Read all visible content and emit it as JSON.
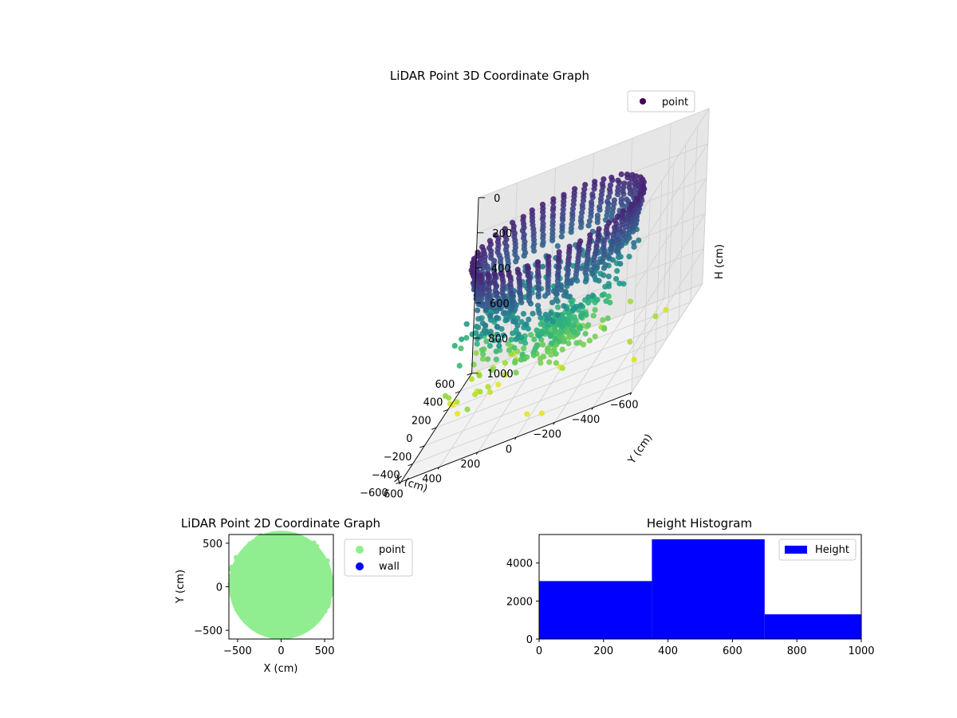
{
  "chart_data": [
    {
      "type": "scatter3d",
      "title": "LiDAR Point 3D Coordinate Graph",
      "xlabel": "X (cm)",
      "ylabel": "Y (cm)",
      "zlabel": "H (cm)",
      "xlim": [
        -600,
        600
      ],
      "ylim": [
        -600,
        600
      ],
      "zlim": [
        0,
        1000
      ],
      "zaxis_inverted": true,
      "x_ticks": [
        -600,
        -400,
        -200,
        0,
        200,
        400,
        600
      ],
      "y_ticks": [
        -600,
        -400,
        -200,
        0,
        200,
        400,
        600
      ],
      "z_ticks": [
        0,
        200,
        400,
        600,
        800,
        1000
      ],
      "legend": [
        "point"
      ],
      "legend_position": "top-right",
      "colormap": "viridis",
      "grid": true,
      "shape": "bowl of points: dense rim at H≈100-300 cm, floor at H≈600-800 cm, sparse outliers to H≈1000 cm"
    },
    {
      "type": "scatter",
      "title": "LiDAR Point 2D Coordinate Graph",
      "xlabel": "X (cm)",
      "ylabel": "Y (cm)",
      "xlim": [
        -600,
        600
      ],
      "ylim": [
        -600,
        600
      ],
      "x_ticks": [
        -500,
        0,
        500
      ],
      "y_ticks": [
        -500,
        0,
        500
      ],
      "series": [
        {
          "name": "point",
          "color": "#90ee90"
        },
        {
          "name": "wall",
          "color": "#0000ff"
        }
      ],
      "legend_position": "outside-right",
      "footprint": "filled disc of points covering roughly X -600..600, Y -600..600"
    },
    {
      "type": "bar",
      "title": "Height Histogram",
      "series": [
        {
          "name": "Height",
          "color": "#0000ff"
        }
      ],
      "bins": [
        {
          "from": 0,
          "to": 350,
          "count": 3050
        },
        {
          "from": 350,
          "to": 700,
          "count": 5250
        },
        {
          "from": 700,
          "to": 1000,
          "count": 1300
        }
      ],
      "xlim": [
        0,
        1000
      ],
      "ylim": [
        0,
        5500
      ],
      "x_ticks": [
        0,
        200,
        400,
        600,
        800,
        1000
      ],
      "y_ticks": [
        0,
        2000,
        4000
      ],
      "legend_position": "top-right"
    }
  ]
}
